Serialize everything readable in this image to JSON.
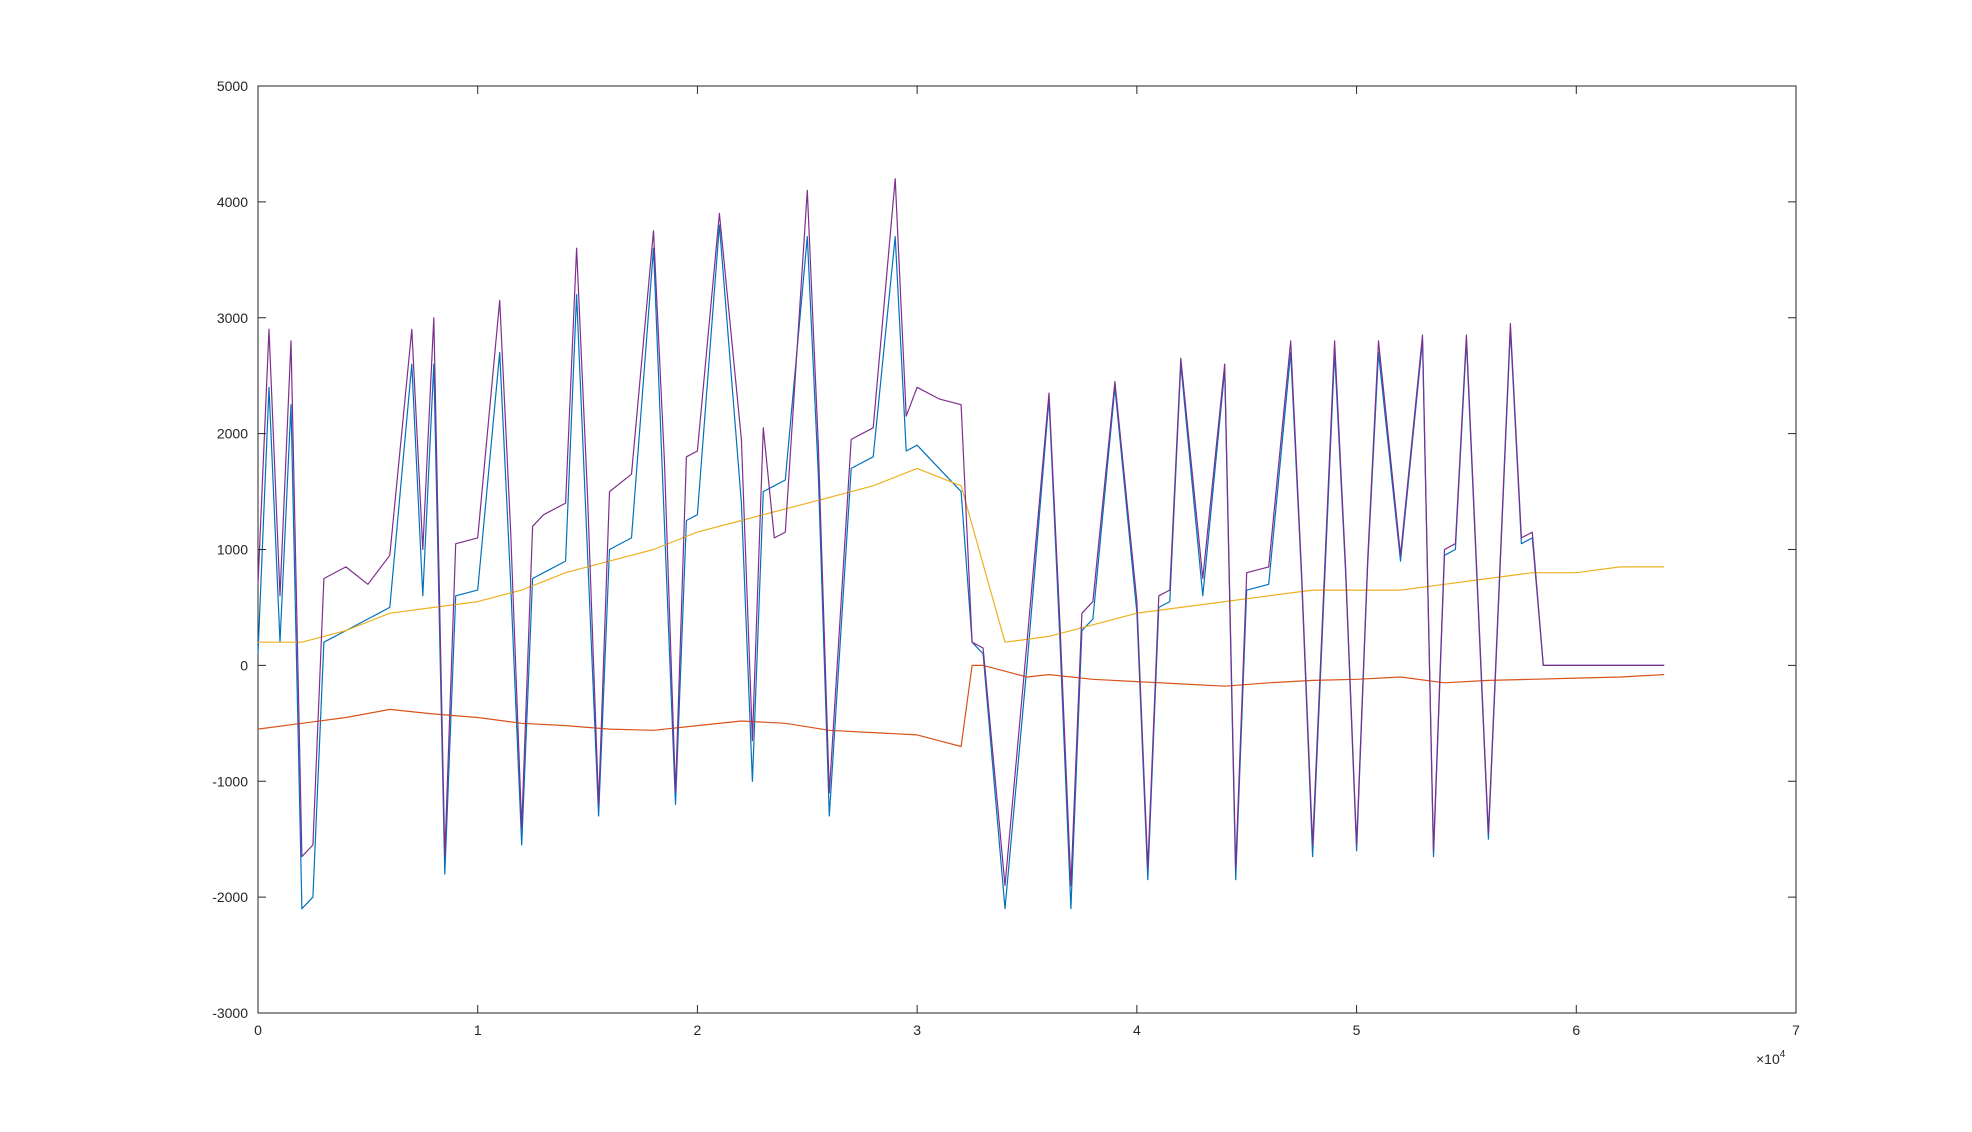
{
  "chart_data": {
    "type": "line",
    "title": "",
    "xlabel": "",
    "ylabel": "",
    "xlim": [
      0,
      70000
    ],
    "ylim": [
      -3000,
      5000
    ],
    "x_ticks": [
      0,
      10000,
      20000,
      30000,
      40000,
      50000,
      60000,
      70000
    ],
    "x_tick_labels": [
      "0",
      "1",
      "2",
      "3",
      "4",
      "5",
      "6",
      "7"
    ],
    "x_exponent": {
      "base": "×10",
      "power": "4"
    },
    "y_ticks": [
      -3000,
      -2000,
      -1000,
      0,
      1000,
      2000,
      3000,
      4000,
      5000
    ],
    "y_tick_labels": [
      "-3000",
      "-2000",
      "-1000",
      "0",
      "1000",
      "2000",
      "3000",
      "4000",
      "5000"
    ],
    "grid": false,
    "legend": "none",
    "colors": {
      "series1": "#0072BD",
      "series2": "#D95319",
      "series3": "#EDB120",
      "series4": "#7E2F8E",
      "axis": "#262626"
    },
    "series": [
      {
        "color": "#0072BD",
        "x": [
          0,
          500,
          1000,
          1500,
          2000,
          2500,
          3000,
          4000,
          5000,
          6000,
          7000,
          7500,
          8000,
          8500,
          9000,
          10000,
          11000,
          11500,
          12000,
          12500,
          13000,
          14000,
          14500,
          15000,
          15500,
          16000,
          17000,
          18000,
          18500,
          19000,
          19500,
          20000,
          21000,
          22000,
          22500,
          23000,
          23500,
          24000,
          25000,
          25500,
          26000,
          27000,
          28000,
          29000,
          29500,
          30000,
          31000,
          32000,
          32500,
          33000,
          34000,
          35000,
          36000,
          36500,
          37000,
          37500,
          38000,
          39000,
          40000,
          40500,
          41000,
          41500,
          42000,
          43000,
          44000,
          44500,
          45000,
          46000,
          47000,
          47500,
          48000,
          49000,
          49500,
          50000,
          50500,
          51000,
          52000,
          53000,
          53500,
          54000,
          54500,
          55000,
          56000,
          57000,
          57500,
          58000,
          58500,
          59000,
          60000,
          60500,
          61000,
          61500,
          62000,
          63000,
          64000
        ],
        "y": [
          100,
          2400,
          200,
          2250,
          -2100,
          -2000,
          200,
          300,
          400,
          500,
          2600,
          600,
          2600,
          -1800,
          600,
          650,
          2700,
          700,
          -1550,
          750,
          800,
          900,
          3200,
          950,
          -1300,
          1000,
          1100,
          3600,
          1200,
          -1200,
          1250,
          1300,
          3800,
          1400,
          -1000,
          1500,
          1550,
          1600,
          3700,
          1650,
          -1300,
          1700,
          1800,
          3700,
          1850,
          1900,
          1700,
          1500,
          200,
          100,
          -2100,
          0,
          2300,
          200,
          -2100,
          300,
          400,
          2400,
          450,
          -1850,
          500,
          550,
          2600,
          600,
          2550,
          -1850,
          650,
          700,
          2700,
          750,
          -1650,
          2700,
          800,
          -1600,
          850,
          2700,
          900,
          2800,
          -1650,
          950,
          1000,
          2800,
          -1500,
          2900,
          1050,
          1100,
          0,
          0,
          0,
          0,
          0,
          0,
          0,
          0,
          0
        ]
      },
      {
        "color": "#D95319",
        "x": [
          0,
          2000,
          4000,
          6000,
          8000,
          10000,
          12000,
          14000,
          16000,
          18000,
          20000,
          22000,
          24000,
          26000,
          28000,
          30000,
          31000,
          32000,
          32500,
          33000,
          34000,
          35000,
          36000,
          38000,
          40000,
          42000,
          44000,
          46000,
          48000,
          50000,
          52000,
          54000,
          56000,
          58000,
          60000,
          62000,
          64000
        ],
        "y": [
          -550,
          -500,
          -450,
          -380,
          -420,
          -450,
          -500,
          -520,
          -550,
          -560,
          -520,
          -480,
          -500,
          -560,
          -580,
          -600,
          -650,
          -700,
          0,
          0,
          -50,
          -100,
          -80,
          -120,
          -140,
          -160,
          -180,
          -150,
          -130,
          -120,
          -100,
          -150,
          -130,
          -120,
          -110,
          -100,
          -80
        ]
      },
      {
        "color": "#EDB120",
        "x": [
          0,
          2000,
          4000,
          6000,
          8000,
          10000,
          12000,
          14000,
          16000,
          18000,
          20000,
          22000,
          24000,
          26000,
          28000,
          30000,
          32000,
          34000,
          36000,
          38000,
          40000,
          42000,
          44000,
          46000,
          48000,
          50000,
          52000,
          54000,
          56000,
          58000,
          60000,
          62000,
          64000
        ],
        "y": [
          200,
          200,
          300,
          450,
          500,
          550,
          650,
          800,
          900,
          1000,
          1150,
          1250,
          1350,
          1450,
          1550,
          1700,
          1550,
          200,
          250,
          350,
          450,
          500,
          550,
          600,
          650,
          650,
          650,
          700,
          750,
          800,
          800,
          850,
          850
        ]
      },
      {
        "color": "#7E2F8E",
        "x": [
          0,
          500,
          1000,
          1500,
          2000,
          2500,
          3000,
          4000,
          5000,
          6000,
          7000,
          7500,
          8000,
          8500,
          9000,
          10000,
          11000,
          11500,
          12000,
          12500,
          13000,
          14000,
          14500,
          15000,
          15500,
          16000,
          17000,
          18000,
          18500,
          19000,
          19500,
          20000,
          21000,
          22000,
          22500,
          23000,
          23500,
          24000,
          25000,
          25500,
          26000,
          27000,
          28000,
          29000,
          29500,
          30000,
          31000,
          32000,
          32500,
          33000,
          34000,
          35000,
          36000,
          36500,
          37000,
          37500,
          38000,
          39000,
          40000,
          40500,
          41000,
          41500,
          42000,
          43000,
          44000,
          44500,
          45000,
          46000,
          47000,
          47500,
          48000,
          49000,
          49500,
          50000,
          50500,
          51000,
          52000,
          53000,
          53500,
          54000,
          54500,
          55000,
          56000,
          57000,
          57500,
          58000,
          58500,
          59000,
          60000,
          60500,
          61000,
          61500,
          62000,
          63000,
          64000
        ],
        "y": [
          700,
          2900,
          600,
          2800,
          -1650,
          -1550,
          750,
          850,
          700,
          950,
          2900,
          1000,
          3000,
          -1650,
          1050,
          1100,
          3150,
          1150,
          -1400,
          1200,
          1300,
          1400,
          3600,
          1450,
          -1200,
          1500,
          1650,
          3750,
          1750,
          -1100,
          1800,
          1850,
          3900,
          1950,
          -650,
          2050,
          1100,
          1150,
          4100,
          1900,
          -1100,
          1950,
          2050,
          4200,
          2150,
          2400,
          2300,
          2250,
          200,
          150,
          -1900,
          200,
          2350,
          350,
          -1900,
          450,
          550,
          2450,
          550,
          -1750,
          600,
          650,
          2650,
          750,
          2600,
          -1750,
          800,
          850,
          2800,
          800,
          -1550,
          2800,
          850,
          -1550,
          900,
          2800,
          950,
          2850,
          -1600,
          1000,
          1050,
          2850,
          -1450,
          2950,
          1100,
          1150,
          0,
          0,
          0,
          0,
          0,
          0,
          0,
          0,
          0
        ]
      }
    ]
  }
}
